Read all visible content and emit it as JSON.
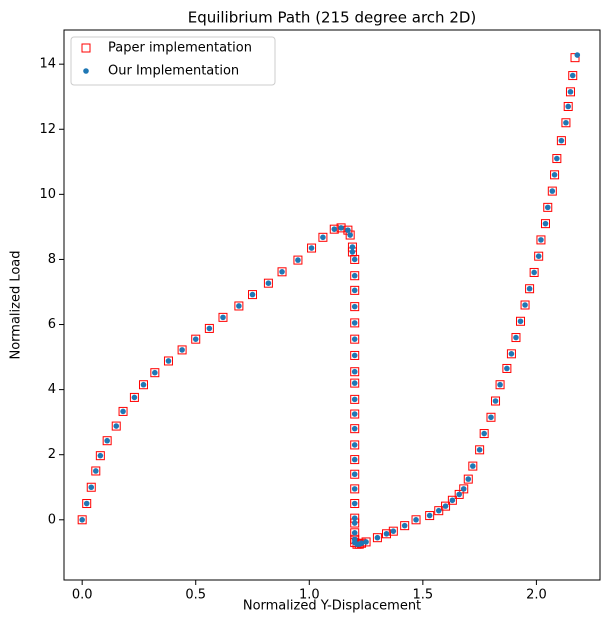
{
  "chart_data": {
    "type": "scatter",
    "title": "Equilibrium Path (215 degree arch 2D)",
    "x_label": "Normalized Y-Displacement",
    "y_label": "Normalized Load",
    "xlim": [
      -0.08,
      2.28
    ],
    "ylim": [
      -1.85,
      15.05
    ],
    "xticks": [
      {
        "value": 0,
        "label": "0.0"
      },
      0.5,
      {
        "value": 1,
        "label": "1.0"
      },
      1.5,
      {
        "value": 2,
        "label": "2.0"
      }
    ],
    "yticks": [
      0,
      2,
      4,
      6,
      8,
      10,
      12,
      14
    ],
    "legend": "upper left",
    "series": [
      {
        "name": "Paper implementation",
        "color": "#ff0000",
        "marker": "square-open",
        "x": [
          0,
          0.02,
          0.04,
          0.06,
          0.08,
          0.11,
          0.15,
          0.18,
          0.23,
          0.27,
          0.32,
          0.38,
          0.44,
          0.5,
          0.56,
          0.62,
          0.69,
          0.75,
          0.82,
          0.88,
          0.95,
          1.01,
          1.06,
          1.11,
          1.14,
          1.17,
          1.18,
          1.19,
          1.19,
          1.2,
          1.2,
          1.2,
          1.2,
          1.2,
          1.2,
          1.2,
          1.2,
          1.2,
          1.2,
          1.2,
          1.2,
          1.2,
          1.2,
          1.2,
          1.2,
          1.2,
          1.2,
          1.2,
          1.2,
          1.2,
          1.2,
          1.21,
          1.22,
          1.23,
          1.25,
          1.3,
          1.34,
          1.37,
          1.42,
          1.47,
          1.53,
          1.57,
          1.6,
          1.63,
          1.66,
          1.68,
          1.7,
          1.72,
          1.75,
          1.77,
          1.8,
          1.82,
          1.84,
          1.87,
          1.89,
          1.91,
          1.93,
          1.95,
          1.97,
          1.99,
          2.01,
          2.02,
          2.04,
          2.05,
          2.07,
          2.08,
          2.09,
          2.11,
          2.13,
          2.14,
          2.15,
          2.16,
          2.17
        ],
        "y": [
          0,
          0.5,
          1.0,
          1.5,
          1.97,
          2.43,
          2.88,
          3.33,
          3.76,
          4.15,
          4.52,
          4.88,
          5.22,
          5.55,
          5.88,
          6.22,
          6.57,
          6.92,
          7.27,
          7.62,
          7.98,
          8.35,
          8.68,
          8.93,
          8.97,
          8.9,
          8.75,
          8.38,
          8.23,
          8.0,
          7.5,
          7.05,
          6.55,
          6.05,
          5.55,
          5.05,
          4.55,
          4.2,
          3.7,
          3.25,
          2.8,
          2.3,
          1.85,
          1.4,
          0.95,
          0.5,
          0.05,
          -0.1,
          -0.4,
          -0.6,
          -0.7,
          -0.75,
          -0.75,
          -0.72,
          -0.68,
          -0.55,
          -0.43,
          -0.35,
          -0.18,
          0,
          0.13,
          0.28,
          0.42,
          0.6,
          0.78,
          0.95,
          1.25,
          1.65,
          2.15,
          2.65,
          3.15,
          3.65,
          4.15,
          4.65,
          5.1,
          5.6,
          6.1,
          6.6,
          7.1,
          7.6,
          8.1,
          8.6,
          9.1,
          9.6,
          10.1,
          10.6,
          11.1,
          11.65,
          12.2,
          12.7,
          13.15,
          13.65,
          14.2
        ]
      },
      {
        "name": "Our Implementation",
        "color": "#1f77b4",
        "marker": "circle",
        "x": [
          0,
          0.02,
          0.04,
          0.06,
          0.08,
          0.11,
          0.15,
          0.18,
          0.23,
          0.27,
          0.32,
          0.38,
          0.44,
          0.5,
          0.56,
          0.62,
          0.69,
          0.75,
          0.82,
          0.88,
          0.95,
          1.01,
          1.06,
          1.11,
          1.14,
          1.17,
          1.18,
          1.19,
          1.19,
          1.2,
          1.2,
          1.2,
          1.2,
          1.2,
          1.2,
          1.2,
          1.2,
          1.2,
          1.2,
          1.2,
          1.2,
          1.2,
          1.2,
          1.2,
          1.2,
          1.2,
          1.2,
          1.2,
          1.2,
          1.2,
          1.2,
          1.21,
          1.22,
          1.23,
          1.25,
          1.3,
          1.34,
          1.37,
          1.42,
          1.47,
          1.53,
          1.57,
          1.6,
          1.63,
          1.66,
          1.68,
          1.7,
          1.72,
          1.75,
          1.77,
          1.8,
          1.82,
          1.84,
          1.87,
          1.89,
          1.91,
          1.93,
          1.95,
          1.97,
          1.99,
          2.01,
          2.02,
          2.04,
          2.05,
          2.07,
          2.08,
          2.09,
          2.11,
          2.13,
          2.14,
          2.15,
          2.16,
          2.18
        ],
        "y": [
          0,
          0.5,
          1.0,
          1.5,
          1.97,
          2.43,
          2.88,
          3.33,
          3.76,
          4.15,
          4.52,
          4.88,
          5.22,
          5.55,
          5.88,
          6.22,
          6.57,
          6.92,
          7.27,
          7.62,
          7.98,
          8.35,
          8.68,
          8.93,
          8.97,
          8.9,
          8.75,
          8.38,
          8.23,
          8.0,
          7.5,
          7.05,
          6.55,
          6.05,
          5.55,
          5.05,
          4.55,
          4.2,
          3.7,
          3.25,
          2.8,
          2.3,
          1.85,
          1.4,
          0.95,
          0.5,
          0.05,
          -0.1,
          -0.4,
          -0.6,
          -0.7,
          -0.75,
          -0.75,
          -0.72,
          -0.68,
          -0.55,
          -0.43,
          -0.35,
          -0.18,
          0,
          0.13,
          0.28,
          0.42,
          0.6,
          0.78,
          0.95,
          1.25,
          1.65,
          2.15,
          2.65,
          3.15,
          3.65,
          4.15,
          4.65,
          5.1,
          5.6,
          6.1,
          6.6,
          7.1,
          7.6,
          8.1,
          8.6,
          9.1,
          9.6,
          10.1,
          10.6,
          11.1,
          11.65,
          12.2,
          12.7,
          13.15,
          13.65,
          14.28
        ]
      }
    ]
  }
}
